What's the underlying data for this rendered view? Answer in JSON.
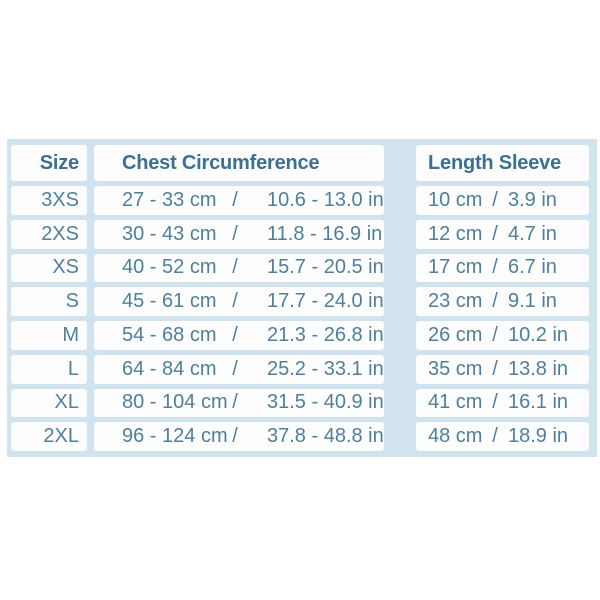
{
  "table": {
    "headers": {
      "size": "Size",
      "chest": "Chest Circumference",
      "length": "Length Sleeve"
    },
    "separator": "/",
    "rows": [
      {
        "size": "3XS",
        "chest_cm": "27 - 33 cm",
        "chest_in": "10.6 - 13.0 in",
        "sleeve_cm": "10 cm",
        "sleeve_in": "3.9 in"
      },
      {
        "size": "2XS",
        "chest_cm": "30 - 43 cm",
        "chest_in": "11.8 - 16.9 in",
        "sleeve_cm": "12 cm",
        "sleeve_in": "4.7 in"
      },
      {
        "size": "XS",
        "chest_cm": "40 - 52 cm",
        "chest_in": "15.7 - 20.5 in",
        "sleeve_cm": "17 cm",
        "sleeve_in": "6.7 in"
      },
      {
        "size": "S",
        "chest_cm": "45 - 61 cm",
        "chest_in": "17.7 - 24.0 in",
        "sleeve_cm": "23 cm",
        "sleeve_in": "9.1 in"
      },
      {
        "size": "M",
        "chest_cm": "54 - 68 cm",
        "chest_in": "21.3 - 26.8 in",
        "sleeve_cm": "26 cm",
        "sleeve_in": "10.2 in"
      },
      {
        "size": "L",
        "chest_cm": "64 - 84 cm",
        "chest_in": "25.2 - 33.1 in",
        "sleeve_cm": "35 cm",
        "sleeve_in": "13.8 in"
      },
      {
        "size": "XL",
        "chest_cm": "80 - 104 cm",
        "chest_in": "31.5 - 40.9 in",
        "sleeve_cm": "41 cm",
        "sleeve_in": "16.1 in"
      },
      {
        "size": "2XL",
        "chest_cm": "96 - 124 cm",
        "chest_in": "37.8 - 48.8 in",
        "sleeve_cm": "48 cm",
        "sleeve_in": "18.9 in"
      }
    ],
    "colors": {
      "table_background": "#d1e3ee",
      "cell_background": "#fdfdfe",
      "header_text": "#3a7190",
      "body_text": "#4e7f9b"
    }
  },
  "chart_data": {
    "type": "table",
    "title": "Size chart",
    "columns": [
      "Size",
      "Chest Circumference (cm)",
      "Chest Circumference (in)",
      "Length Sleeve (cm)",
      "Length Sleeve (in)"
    ],
    "rows": [
      [
        "3XS",
        "27 - 33",
        "10.6 - 13.0",
        "10",
        "3.9"
      ],
      [
        "2XS",
        "30 - 43",
        "11.8 - 16.9",
        "12",
        "4.7"
      ],
      [
        "XS",
        "40 - 52",
        "15.7 - 20.5",
        "17",
        "6.7"
      ],
      [
        "S",
        "45 - 61",
        "17.7 - 24.0",
        "23",
        "9.1"
      ],
      [
        "M",
        "54 - 68",
        "21.3 - 26.8",
        "26",
        "10.2"
      ],
      [
        "L",
        "64 - 84",
        "25.2 - 33.1",
        "35",
        "13.8"
      ],
      [
        "XL",
        "80 - 104",
        "31.5 - 40.9",
        "41",
        "16.1"
      ],
      [
        "2XL",
        "96 - 124",
        "37.8 - 48.8",
        "48",
        "18.9"
      ]
    ]
  }
}
